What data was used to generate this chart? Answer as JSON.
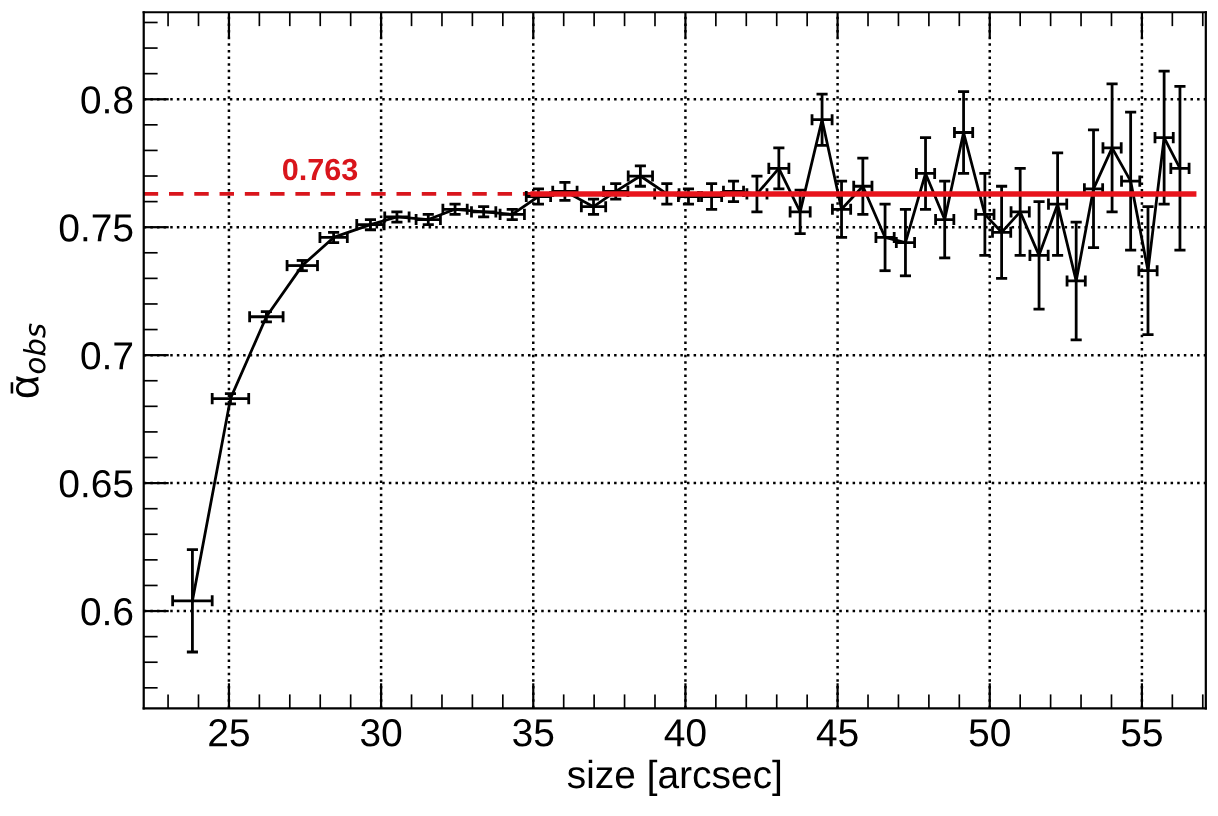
{
  "chart_data": {
    "type": "line",
    "xlabel": "size [arcsec]",
    "ylabel": "ᾱ$_{obs}$",
    "xlim": [
      22.2,
      57.1
    ],
    "ylim": [
      0.562,
      0.834
    ],
    "xticks": [
      25,
      30,
      35,
      40,
      45,
      50,
      55
    ],
    "yticks": [
      0.6,
      0.65,
      0.7,
      0.75,
      0.8
    ],
    "grid": true,
    "marker": "none",
    "line_style": "solid",
    "series": [
      {
        "color": "#000000",
        "x": [
          23.8,
          25.05,
          26.23,
          27.41,
          28.44,
          29.65,
          30.52,
          31.55,
          32.43,
          33.37,
          34.31,
          35.17,
          36.04,
          36.98,
          37.71,
          38.52,
          39.39,
          40.1,
          40.86,
          41.58,
          42.35,
          43.07,
          43.77,
          44.49,
          45.13,
          45.83,
          46.56,
          47.23,
          47.89,
          48.52,
          49.14,
          49.84,
          50.39,
          51.0,
          51.62,
          52.23,
          52.84,
          53.41,
          54.02,
          54.63,
          55.2,
          55.73,
          56.25
        ],
        "values": [
          0.604,
          0.683,
          0.715,
          0.735,
          0.746,
          0.751,
          0.754,
          0.753,
          0.757,
          0.756,
          0.755,
          0.762,
          0.764,
          0.758,
          0.764,
          0.77,
          0.763,
          0.762,
          0.762,
          0.764,
          0.763,
          0.773,
          0.756,
          0.792,
          0.757,
          0.766,
          0.746,
          0.744,
          0.771,
          0.753,
          0.787,
          0.755,
          0.748,
          0.756,
          0.739,
          0.759,
          0.729,
          0.765,
          0.781,
          0.768,
          0.733,
          0.785,
          0.773
        ],
        "errors": [
          0.02,
          0.002,
          0.002,
          0.002,
          0.002,
          0.002,
          0.002,
          0.002,
          0.002,
          0.002,
          0.002,
          0.003,
          0.0035,
          0.003,
          0.003,
          0.004,
          0.004,
          0.003,
          0.005,
          0.004,
          0.007,
          0.008,
          0.0085,
          0.01,
          0.011,
          0.011,
          0.013,
          0.013,
          0.014,
          0.015,
          0.016,
          0.016,
          0.018,
          0.017,
          0.021,
          0.02,
          0.023,
          0.023,
          0.025,
          0.027,
          0.025,
          0.026,
          0.032
        ],
        "xerrors": [
          0.65,
          0.6,
          0.55,
          0.5,
          0.45,
          0.45,
          0.4,
          0.4,
          0.4,
          0.4,
          0.4,
          0.4,
          0.4,
          0.4,
          0.4,
          0.4,
          0.4,
          0.33,
          0.33,
          0.33,
          0.33,
          0.33,
          0.33,
          0.33,
          0.3,
          0.3,
          0.3,
          0.3,
          0.3,
          0.3,
          0.3,
          0.3,
          0.3,
          0.3,
          0.3,
          0.3,
          0.3,
          0.3,
          0.3,
          0.3,
          0.3,
          0.3,
          0.3
        ]
      },
      {
        "color": "#e8141c",
        "x": [
          35.0,
          56.7
        ],
        "values": [
          0.763,
          0.763
        ]
      }
    ],
    "ref_lines": [
      {
        "axis": "y",
        "value": 0.763,
        "label": "0.763",
        "color": "#d9151c",
        "line_style": "dashed"
      }
    ]
  }
}
